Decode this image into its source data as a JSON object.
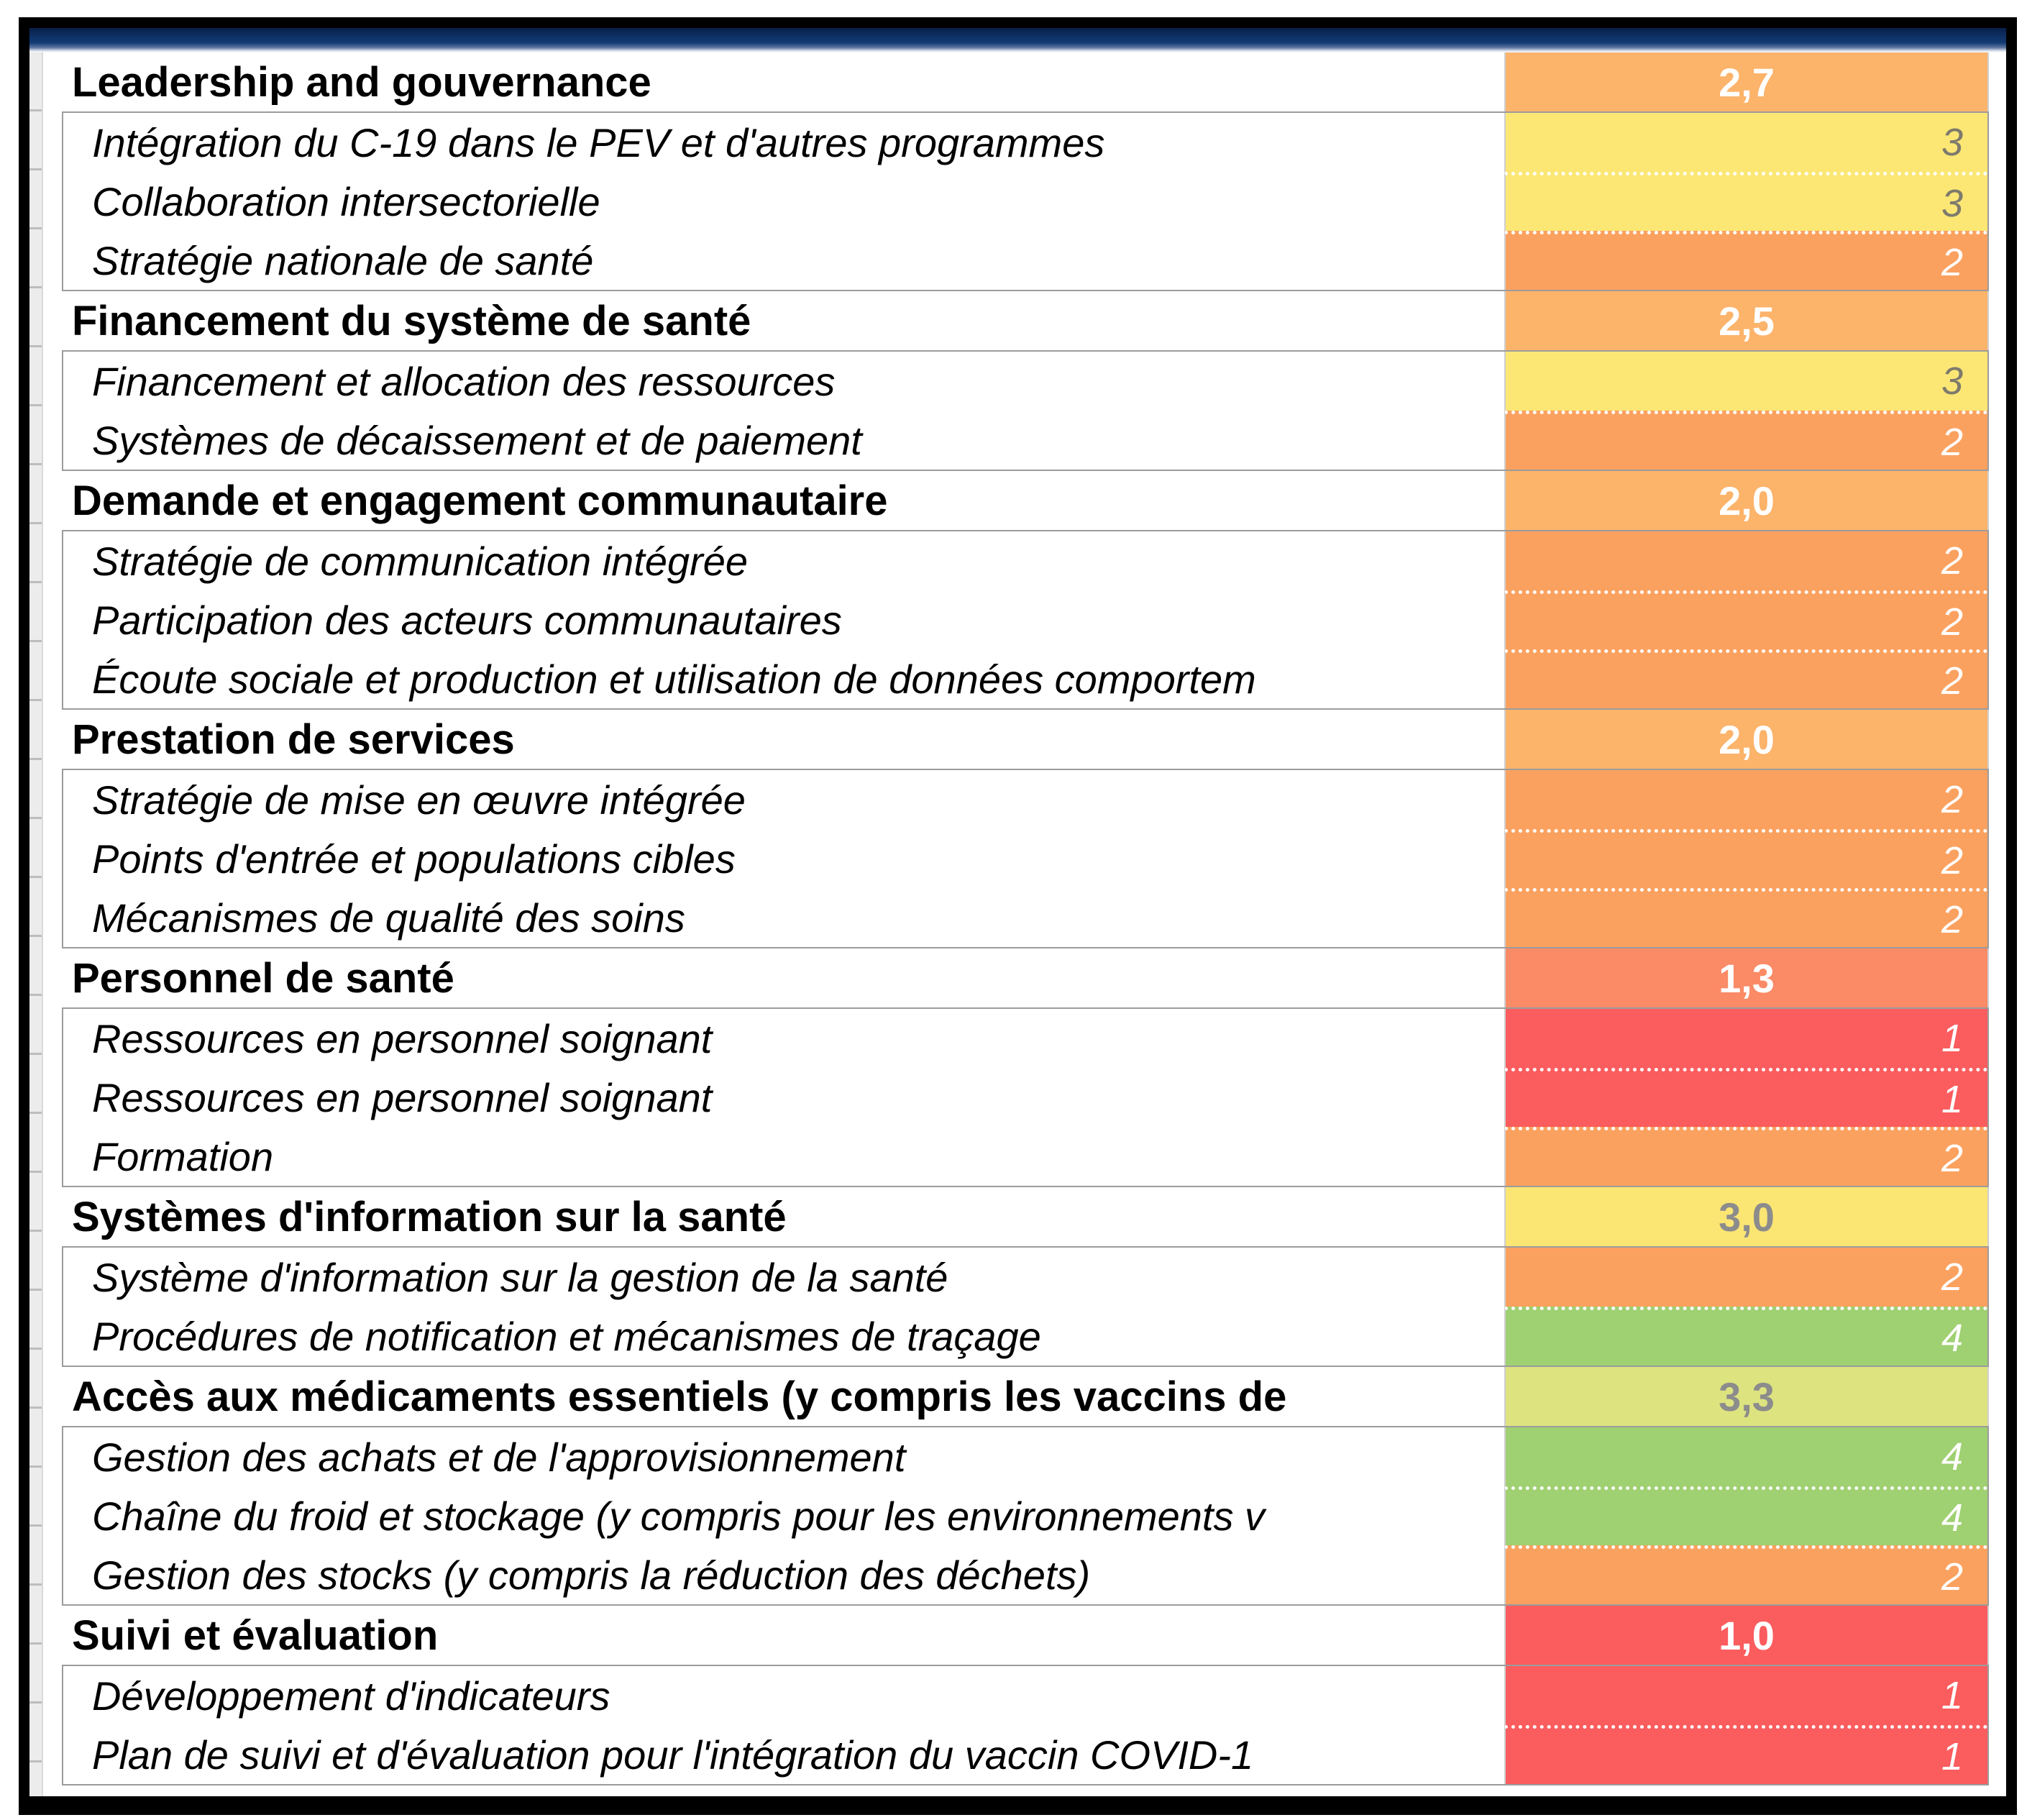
{
  "palette": {
    "navy_bar": "#0F3369",
    "frame_border": "#000000",
    "category_orange": "#FCB36A",
    "sub_orange": "#FBA15F",
    "salmon": "#FB8A66",
    "red": "#FB5C5E",
    "yellow_sub": "#FCE775",
    "yellow_category": "#FBE573",
    "yellow_green": "#DDE37F",
    "green": "#9FD071",
    "score_white": "#FFFFFF",
    "score_gray": "#8C8C8C",
    "sub_score_dark": "#7E7A6C"
  },
  "table": {
    "sections": [
      {
        "title": "Leadership and gouvernance",
        "score": "2,7",
        "score_bg": "#FCB36A",
        "score_color": "#FFFFFF",
        "subs": [
          {
            "label": "Intégration du C-19 dans le PEV et d'autres programmes",
            "score": "3",
            "bg": "#FCE775",
            "color": "#7E7A6C"
          },
          {
            "label": "Collaboration intersectorielle",
            "score": "3",
            "bg": "#FCE775",
            "color": "#7E7A6C"
          },
          {
            "label": "Stratégie nationale de santé",
            "score": "2",
            "bg": "#FBA15F",
            "color": "#FFFFFF"
          }
        ]
      },
      {
        "title": "Financement du système de santé",
        "score": "2,5",
        "score_bg": "#FCB36A",
        "score_color": "#FFFFFF",
        "subs": [
          {
            "label": "Financement et allocation des ressources",
            "score": "3",
            "bg": "#FCE775",
            "color": "#7E7A6C"
          },
          {
            "label": "Systèmes de décaissement et de paiement",
            "score": "2",
            "bg": "#FBA15F",
            "color": "#FFFFFF"
          }
        ]
      },
      {
        "title": "Demande et engagement communautaire",
        "score": "2,0",
        "score_bg": "#FCB36A",
        "score_color": "#FFFFFF",
        "subs": [
          {
            "label": "Stratégie de communication intégrée",
            "score": "2",
            "bg": "#FBA15F",
            "color": "#FFFFFF"
          },
          {
            "label": "Participation des acteurs communautaires",
            "score": "2",
            "bg": "#FBA15F",
            "color": "#FFFFFF"
          },
          {
            "label": "Écoute sociale et production et utilisation de données comportem",
            "score": "2",
            "bg": "#FBA15F",
            "color": "#FFFFFF"
          }
        ]
      },
      {
        "title": "Prestation de services",
        "score": "2,0",
        "score_bg": "#FCB36A",
        "score_color": "#FFFFFF",
        "subs": [
          {
            "label": "Stratégie de mise en œuvre intégrée",
            "score": "2",
            "bg": "#FBA15F",
            "color": "#FFFFFF"
          },
          {
            "label": "Points d'entrée et populations cibles",
            "score": "2",
            "bg": "#FBA15F",
            "color": "#FFFFFF"
          },
          {
            "label": "Mécanismes de qualité des soins",
            "score": "2",
            "bg": "#FBA15F",
            "color": "#FFFFFF"
          }
        ]
      },
      {
        "title": "Personnel de santé",
        "score": "1,3",
        "score_bg": "#FB8A66",
        "score_color": "#FFFFFF",
        "subs": [
          {
            "label": "Ressources en personnel soignant",
            "score": "1",
            "bg": "#FB5C5E",
            "color": "#FFFFFF"
          },
          {
            "label": "Ressources en personnel soignant",
            "score": "1",
            "bg": "#FB5C5E",
            "color": "#FFFFFF"
          },
          {
            "label": "Formation",
            "score": "2",
            "bg": "#FBA15F",
            "color": "#FFFFFF"
          }
        ]
      },
      {
        "title": "Systèmes d'information sur la santé",
        "score": "3,0",
        "score_bg": "#FBE573",
        "score_color": "#8C8C8C",
        "subs": [
          {
            "label": "Système d'information sur la gestion de la santé",
            "score": "2",
            "bg": "#FBA15F",
            "color": "#FFFFFF"
          },
          {
            "label": "Procédures de notification et mécanismes de traçage",
            "score": "4",
            "bg": "#9FD071",
            "color": "#FFFFFF"
          }
        ]
      },
      {
        "title": "Accès aux médicaments essentiels (y compris les vaccins de",
        "score": "3,3",
        "score_bg": "#DDE37F",
        "score_color": "#8C8C8C",
        "subs": [
          {
            "label": "Gestion des achats et de l'approvisionnement",
            "score": "4",
            "bg": "#9FD071",
            "color": "#FFFFFF"
          },
          {
            "label": "Chaîne du froid et stockage (y compris pour les environnements v",
            "score": "4",
            "bg": "#9FD071",
            "color": "#FFFFFF"
          },
          {
            "label": "Gestion des stocks (y compris la réduction des déchets)",
            "score": "2",
            "bg": "#FBA15F",
            "color": "#FFFFFF"
          }
        ]
      },
      {
        "title": "Suivi et évaluation",
        "score": "1,0",
        "score_bg": "#FB5C5E",
        "score_color": "#FFFFFF",
        "subs": [
          {
            "label": "Développement d'indicateurs",
            "score": "1",
            "bg": "#FB5C5E",
            "color": "#FFFFFF"
          },
          {
            "label": "Plan de suivi et d'évaluation pour l'intégration du vaccin COVID-1",
            "score": "1",
            "bg": "#FB5C5E",
            "color": "#FFFFFF"
          }
        ]
      }
    ]
  }
}
